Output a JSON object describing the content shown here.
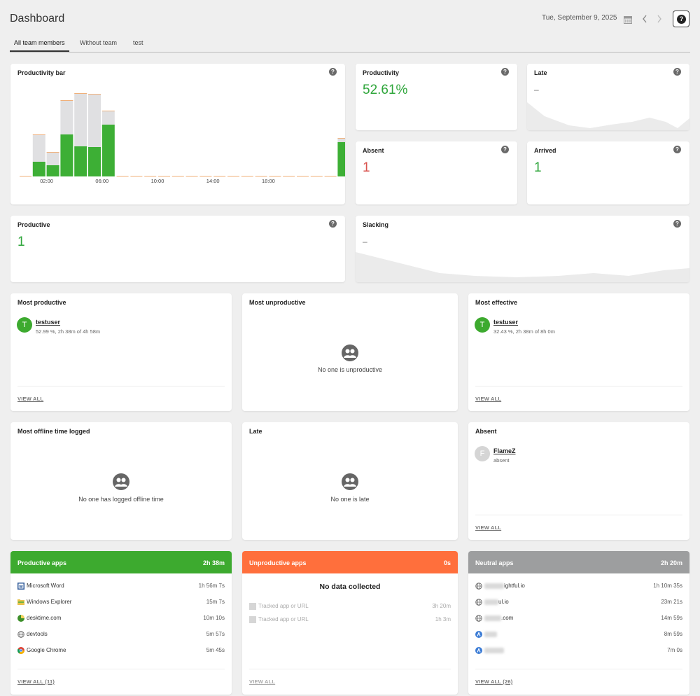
{
  "header": {
    "title": "Dashboard",
    "date": "Tue, September 9, 2025",
    "help": "?"
  },
  "tabs": [
    "All team members",
    "Without team",
    "test"
  ],
  "productivity_bar": {
    "title": "Productivity bar",
    "chart_data": {
      "type": "bar",
      "x_tick_labels": [
        "02:00",
        "06:00",
        "10:00",
        "14:00",
        "18:00"
      ],
      "bars": [
        {
          "hour": 0,
          "productive": 0,
          "total": 0
        },
        {
          "hour": 1,
          "productive": 21,
          "total": 59
        },
        {
          "hour": 2,
          "productive": 16,
          "total": 34
        },
        {
          "hour": 3,
          "productive": 60,
          "total": 108
        },
        {
          "hour": 4,
          "productive": 43,
          "total": 118
        },
        {
          "hour": 5,
          "productive": 42,
          "total": 117
        },
        {
          "hour": 6,
          "productive": 74,
          "total": 93
        },
        {
          "hour": 23,
          "productive": 49,
          "total": 54
        }
      ],
      "colors": {
        "productive": "#3daf35",
        "idle": "#e0e0e2",
        "cap": "#f0b07a",
        "baseline": "#f0b07a"
      }
    }
  },
  "stats": {
    "productivity": {
      "title": "Productivity",
      "value": "52.61%"
    },
    "late": {
      "title": "Late",
      "value": "–"
    },
    "absent": {
      "title": "Absent",
      "value": "1"
    },
    "arrived": {
      "title": "Arrived",
      "value": "1"
    },
    "productive": {
      "title": "Productive",
      "value": "1"
    },
    "slacking": {
      "title": "Slacking",
      "value": "–"
    }
  },
  "people_cards": {
    "most_productive": {
      "title": "Most productive",
      "avatar": "T",
      "name": "testuser",
      "sub": "52.99 %, 2h 38m of 4h 58m",
      "view_all": "VIEW ALL"
    },
    "most_unproductive": {
      "title": "Most unproductive",
      "empty": "No one is unproductive"
    },
    "most_effective": {
      "title": "Most effective",
      "avatar": "T",
      "name": "testuser",
      "sub": "32.43 %, 2h 38m of 8h 0m",
      "view_all": "VIEW ALL"
    },
    "most_offline": {
      "title": "Most offline time logged",
      "empty": "No one has logged offline time"
    },
    "late": {
      "title": "Late",
      "empty": "No one is late"
    },
    "absent": {
      "title": "Absent",
      "avatar": "F",
      "name": "FlameZ",
      "sub": "absent",
      "view_all": "VIEW ALL"
    }
  },
  "apps": {
    "productive": {
      "title": "Productive apps",
      "total": "2h 38m",
      "color": "#3daa2f",
      "rows": [
        {
          "icon": "word-icon",
          "name": "Microsoft Word",
          "time": "1h 56m 7s"
        },
        {
          "icon": "explorer-icon",
          "name": "Windows Explorer",
          "time": "15m 7s"
        },
        {
          "icon": "desktime-icon",
          "name": "desktime.com",
          "time": "10m 10s"
        },
        {
          "icon": "globe-icon",
          "name": "devtools",
          "time": "5m 57s"
        },
        {
          "icon": "chrome-icon",
          "name": "Google Chrome",
          "time": "5m 45s"
        }
      ],
      "view_all": "VIEW ALL (11)"
    },
    "unproductive": {
      "title": "Unproductive apps",
      "total": "0s",
      "color": "#ff6f3c",
      "empty": "No data collected",
      "rows": [
        {
          "name": "Tracked app or URL",
          "time": "3h 20m"
        },
        {
          "name": "Tracked app or URL",
          "time": "1h 3m"
        }
      ],
      "view_all": "VIEW ALL"
    },
    "neutral": {
      "title": "Neutral apps",
      "total": "2h 20m",
      "color": "#9d9e9f",
      "rows": [
        {
          "icon": "globe-icon",
          "name": "ightful.io",
          "time": "1h 10m 35s"
        },
        {
          "icon": "globe-icon",
          "name": "ul.io",
          "time": "23m 21s"
        },
        {
          "icon": "globe-icon",
          "name": ".com",
          "time": "14m 59s"
        },
        {
          "icon": "app-icon",
          "name": "",
          "time": "8m 59s"
        },
        {
          "icon": "app-icon",
          "name": "",
          "time": "7m 0s"
        }
      ],
      "view_all": "VIEW ALL (26)"
    }
  }
}
